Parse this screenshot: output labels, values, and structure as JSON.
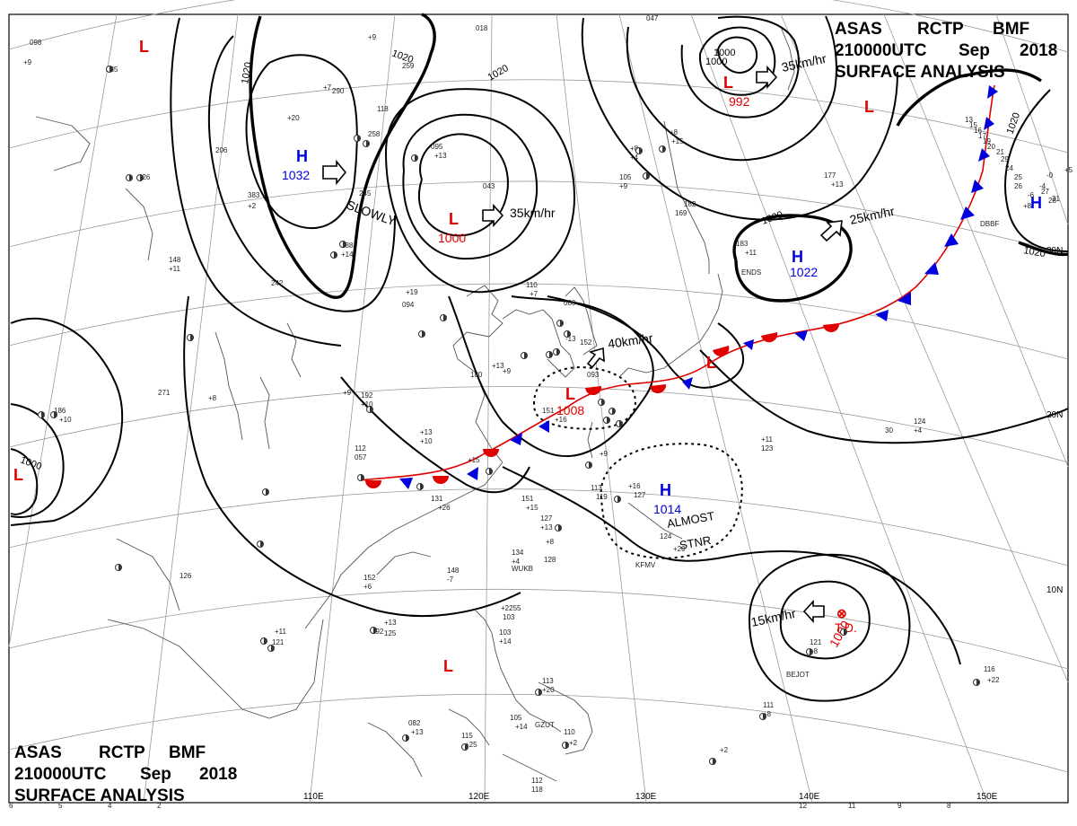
{
  "header_top_right": {
    "line1_parts": [
      "ASAS",
      "RCTP",
      "BMF"
    ],
    "line2_parts": [
      "210000UTC",
      "Sep",
      "2018"
    ],
    "line3": "SURFACE ANALYSIS"
  },
  "header_bottom_left": {
    "line1_parts": [
      "ASAS",
      "RCTP",
      "BMF"
    ],
    "line2_parts": [
      "210000UTC",
      "Sep",
      "2018"
    ],
    "line3": "SURFACE ANALYSIS"
  },
  "longitude_labels": [
    "110E",
    "120E",
    "130E",
    "140E",
    "150E"
  ],
  "latitude_labels": [
    "30N",
    "20N",
    "10N"
  ],
  "isobar_labels": [
    "1020",
    "1020",
    "1020",
    "1020",
    "1020",
    "1020",
    "1000",
    "1000"
  ],
  "pressure_systems": [
    {
      "type": "L",
      "value": ""
    },
    {
      "type": "H",
      "value": "1032"
    },
    {
      "type": "L",
      "value": "1000"
    },
    {
      "type": "L",
      "value": "992",
      "extra": "1000"
    },
    {
      "type": "L",
      "value": ""
    },
    {
      "type": "H",
      "value": ""
    },
    {
      "type": "H",
      "value": "1022"
    },
    {
      "type": "L",
      "value": "1008"
    },
    {
      "type": "L",
      "value": ""
    },
    {
      "type": "H",
      "value": "1014"
    },
    {
      "type": "L",
      "value": ""
    },
    {
      "type": "L",
      "value": ""
    },
    {
      "type": "TD",
      "value": "1000",
      "label": "T.D."
    }
  ],
  "movements": [
    "SLOWLY",
    "35km/hr",
    "35km/hr",
    "25km/hr",
    "40km/hr",
    "15km/hr",
    "ALMOST",
    "STNR"
  ],
  "station_obs": [
    "235",
    "+9",
    "259",
    "290",
    "258",
    "095",
    "+13",
    "043",
    "206",
    "383",
    "+2",
    "245",
    "288",
    "+14",
    "126",
    "148",
    "+11",
    "242",
    "+19",
    "192",
    "+10",
    "151",
    "+16",
    "180",
    "+13",
    "+9",
    "110",
    "+7",
    "080",
    "-13",
    "152",
    "093",
    "+8",
    "105",
    "+9",
    "+4",
    "182",
    "169",
    "+8",
    "+15",
    "177",
    "+13",
    "183",
    "+11",
    "186",
    "+10",
    "271",
    "+8",
    "+9",
    "112",
    "057",
    "+13",
    "+10",
    "+15",
    "192",
    "131",
    "+26",
    "151",
    "+15",
    "+9",
    "113",
    "119",
    "+16",
    "127",
    "+11",
    "123",
    "124",
    "+4",
    "134",
    "+4",
    "152",
    "+6",
    "148",
    "-7",
    "127",
    "+13",
    "128",
    "+8",
    "124",
    "+20",
    "126",
    "+11",
    "121",
    "+13",
    "125",
    "+2255",
    "103",
    "103",
    "+14",
    "113",
    "+20",
    "105",
    "+14",
    "082",
    "+13",
    "115",
    "+25",
    "110",
    "+2",
    "112",
    "118",
    "+2",
    "116",
    "+22",
    "121",
    "+8",
    "118",
    "+20",
    "094",
    "111",
    "+8",
    "018",
    "+7",
    "047",
    "+9",
    "098",
    "+5",
    "-0",
    "-4",
    "-6",
    "+8",
    "31",
    "30",
    "28",
    "27",
    "26",
    "25",
    "24",
    "29",
    "21",
    "20",
    "19",
    "17",
    "16",
    "15",
    "13",
    "12",
    "11",
    "9",
    "8",
    "6",
    "5",
    "4",
    "2"
  ],
  "station_ids": [
    "WUKB",
    "KFMV",
    "DBBF",
    "BEJOT",
    "GZUT",
    "ENDS"
  ]
}
